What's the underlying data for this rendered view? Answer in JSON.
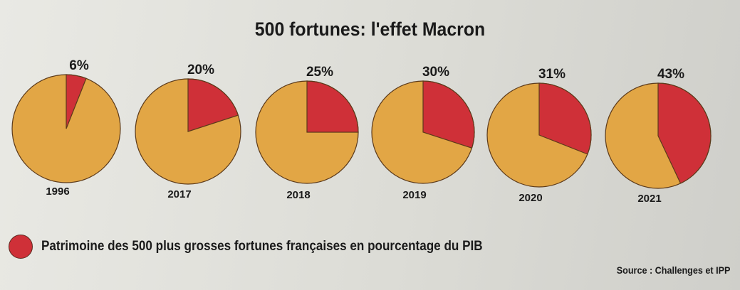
{
  "chart_data": {
    "type": "pie",
    "title": "500 fortunes: l'effet Macron",
    "categories": [
      "1996",
      "2017",
      "2018",
      "2019",
      "2020",
      "2021"
    ],
    "values": [
      6,
      20,
      25,
      30,
      31,
      43
    ],
    "value_labels": [
      "6%",
      "20%",
      "25%",
      "30%",
      "31%",
      "43%"
    ],
    "legend": {
      "label": "Patrimoine des 500 plus grosses fortunes françaises en pourcentage du PIB",
      "placement": "bottom-left"
    },
    "source": "Source : Challenges et IPP",
    "colors": {
      "share": "#cf3038",
      "rest": "#e2a645",
      "outline": "#5c3a1a"
    }
  }
}
